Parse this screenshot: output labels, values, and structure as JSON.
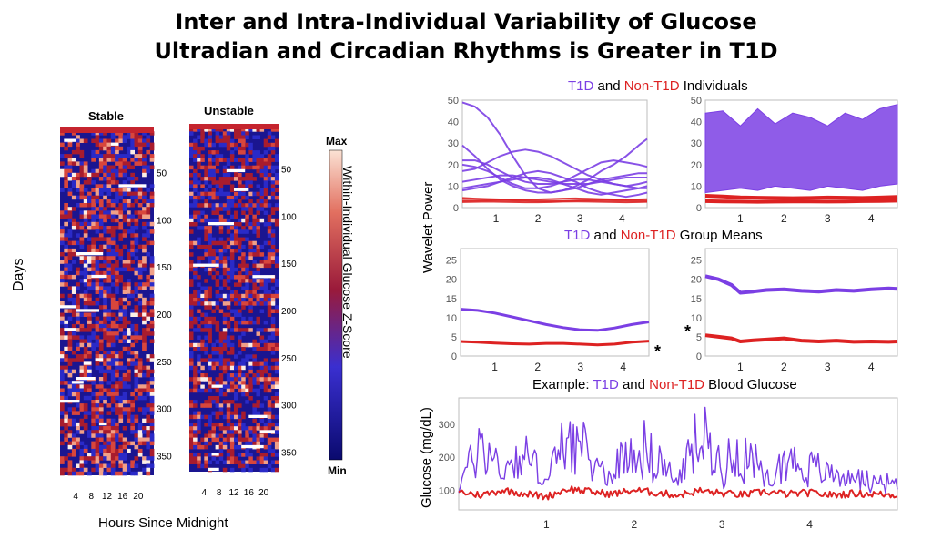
{
  "title": {
    "line1": "Inter and Intra-Individual Variability of Glucose",
    "line2": "Ultradian and Circadian Rhythms is Greater in T1D"
  },
  "heatmaps": {
    "left_title": "Stable",
    "right_title": "Unstable",
    "ylabel": "Days",
    "xlabel": "Hours Since Midnight",
    "colorbar": {
      "max_label": "Max",
      "min_label": "Min",
      "title": "Within-Individual Glucose Z-Score"
    }
  },
  "subtitles": {
    "individuals": {
      "a": "T1D",
      "b": " and ",
      "c": "Non-T1D",
      "d": " Individuals"
    },
    "means": {
      "a": "T1D",
      "b": " and ",
      "c": "Non-T1D",
      "d": " Group Means"
    },
    "example": {
      "prefix": "Example: ",
      "a": "T1D",
      "b": " and ",
      "c": "Non-T1D",
      "d": " Blood Glucose"
    }
  },
  "labels": {
    "wavelet_power": "Wavelet Power",
    "glucose": "Glucose (mg/dL)",
    "asterisk": "*"
  },
  "colors": {
    "t1d": "#7b3fe4",
    "non_t1d": "#dd2222",
    "heat_low": "#0a0a8a",
    "heat_mid": "#b01c2c",
    "heat_high": "#fbe2d4"
  },
  "chart_data": [
    {
      "type": "heatmap",
      "title": "Stable",
      "xlabel": "Hours Since Midnight",
      "ylabel": "Days",
      "x_ticks": [
        4,
        8,
        12,
        16,
        20
      ],
      "y_ticks": [
        50,
        100,
        150,
        200,
        250,
        300,
        350
      ],
      "xlim": [
        0,
        24
      ],
      "ylim": [
        1,
        370
      ]
    },
    {
      "type": "heatmap",
      "title": "Unstable",
      "xlabel": "Hours Since Midnight",
      "x_ticks": [
        4,
        8,
        12,
        16,
        20
      ],
      "y_ticks": [
        50,
        100,
        150,
        200,
        250,
        300,
        350
      ],
      "xlim": [
        0,
        24
      ],
      "ylim": [
        1,
        370
      ],
      "colorbar": {
        "min": "Min",
        "max": "Max",
        "label": "Within-Individual Glucose Z-Score"
      }
    },
    {
      "type": "line",
      "ylabel": "Wavelet Power",
      "xlim": [
        0.2,
        4.6
      ],
      "ylim": [
        0,
        50
      ],
      "x_ticks": [
        1,
        2,
        3,
        4
      ],
      "y_ticks": [
        0,
        10,
        20,
        30,
        40,
        50
      ],
      "x": [
        0.2,
        0.5,
        0.8,
        1.1,
        1.4,
        1.7,
        2.0,
        2.3,
        2.6,
        2.9,
        3.2,
        3.5,
        3.8,
        4.1,
        4.4,
        4.6
      ],
      "series": [
        {
          "group": "T1D",
          "values": [
            49,
            47,
            42,
            34,
            24,
            15,
            9,
            7,
            8,
            10,
            13,
            17,
            20,
            24,
            29,
            32
          ]
        },
        {
          "group": "T1D",
          "values": [
            29,
            24,
            18,
            13,
            10,
            8,
            7,
            7,
            8,
            9,
            11,
            13,
            14,
            15,
            16,
            16
          ]
        },
        {
          "group": "T1D",
          "values": [
            22,
            22,
            20,
            17,
            14,
            12,
            11,
            11,
            12,
            13,
            13,
            12,
            11,
            10,
            9,
            9
          ]
        },
        {
          "group": "T1D",
          "values": [
            17,
            18,
            21,
            24,
            26,
            27,
            26,
            24,
            21,
            18,
            15,
            13,
            11,
            10,
            11,
            12
          ]
        },
        {
          "group": "T1D",
          "values": [
            20,
            19,
            17,
            14,
            11,
            9,
            9,
            10,
            12,
            15,
            18,
            21,
            22,
            21,
            20,
            19
          ]
        },
        {
          "group": "T1D",
          "values": [
            12,
            13,
            14,
            15,
            15,
            14,
            13,
            12,
            11,
            11,
            11,
            12,
            13,
            14,
            14,
            14
          ]
        },
        {
          "group": "T1D",
          "values": [
            9,
            10,
            11,
            12,
            13,
            14,
            14,
            13,
            11,
            9,
            7,
            6,
            7,
            8,
            9,
            10
          ]
        },
        {
          "group": "T1D",
          "values": [
            8,
            9,
            10,
            12,
            14,
            16,
            17,
            16,
            14,
            12,
            9,
            7,
            6,
            5,
            6,
            7
          ]
        },
        {
          "group": "Non-T1D",
          "values": [
            4.5,
            4.2,
            4.0,
            3.8,
            3.7,
            3.6,
            3.8,
            4.0,
            4.2,
            4.3,
            4.1,
            3.9,
            3.8,
            3.7,
            3.8,
            3.9
          ]
        },
        {
          "group": "Non-T1D",
          "values": [
            3.2,
            3.3,
            3.4,
            3.5,
            3.4,
            3.3,
            3.1,
            3.0,
            3.1,
            3.3,
            3.4,
            3.5,
            3.4,
            3.3,
            3.2,
            3.1
          ]
        },
        {
          "group": "Non-T1D",
          "values": [
            2.6,
            2.7,
            2.8,
            2.7,
            2.6,
            2.5,
            2.5,
            2.6,
            2.8,
            2.9,
            2.8,
            2.7,
            2.6,
            2.5,
            2.6,
            2.7
          ]
        }
      ]
    },
    {
      "type": "line",
      "xlim": [
        0.2,
        4.6
      ],
      "ylim": [
        0,
        50
      ],
      "x_ticks": [
        1,
        2,
        3,
        4
      ],
      "y_ticks": [
        0,
        10,
        20,
        30,
        40,
        50
      ],
      "note": "dense band of T1D individual curves spanning roughly 8 to 48",
      "x": [
        0.2,
        0.6,
        1.0,
        1.4,
        1.8,
        2.2,
        2.6,
        3.0,
        3.4,
        3.8,
        4.2,
        4.6
      ],
      "series": [
        {
          "group": "T1D",
          "name": "band-upper",
          "values": [
            44,
            45,
            38,
            46,
            39,
            44,
            42,
            38,
            44,
            41,
            46,
            48
          ]
        },
        {
          "group": "T1D",
          "name": "band-lower",
          "values": [
            7,
            8,
            9,
            8,
            10,
            9,
            8,
            10,
            9,
            8,
            10,
            11
          ]
        },
        {
          "group": "Non-T1D",
          "values": [
            5.5,
            5.2,
            4.8,
            4.6,
            4.5,
            4.4,
            4.5,
            4.7,
            4.6,
            4.5,
            4.7,
            5.0
          ]
        },
        {
          "group": "Non-T1D",
          "values": [
            3.0,
            2.9,
            2.8,
            2.7,
            2.8,
            2.9,
            2.9,
            2.8,
            2.9,
            3.0,
            3.1,
            3.2
          ]
        }
      ]
    },
    {
      "type": "line",
      "xlim": [
        0.2,
        4.6
      ],
      "ylim": [
        0,
        28
      ],
      "x_ticks": [
        1,
        2,
        3,
        4
      ],
      "y_ticks": [
        0,
        5,
        10,
        15,
        20,
        25
      ],
      "x": [
        0.2,
        0.6,
        1.0,
        1.4,
        1.8,
        2.2,
        2.6,
        3.0,
        3.4,
        3.8,
        4.2,
        4.6
      ],
      "series": [
        {
          "group": "T1D",
          "values": [
            12.2,
            11.9,
            11.2,
            10.2,
            9.2,
            8.2,
            7.4,
            6.8,
            6.7,
            7.3,
            8.2,
            8.9
          ]
        },
        {
          "group": "Non-T1D",
          "values": [
            3.8,
            3.6,
            3.4,
            3.2,
            3.1,
            3.3,
            3.3,
            3.1,
            2.9,
            3.1,
            3.6,
            3.9
          ]
        }
      ]
    },
    {
      "type": "line",
      "xlim": [
        0.2,
        4.6
      ],
      "ylim": [
        0,
        28
      ],
      "x_ticks": [
        1,
        2,
        3,
        4
      ],
      "y_ticks": [
        0,
        5,
        10,
        15,
        20,
        25
      ],
      "x": [
        0.2,
        0.5,
        0.8,
        1.0,
        1.3,
        1.6,
        2.0,
        2.4,
        2.8,
        3.2,
        3.6,
        4.0,
        4.4,
        4.6
      ],
      "series": [
        {
          "group": "T1D",
          "values": [
            20.8,
            20.0,
            18.5,
            16.5,
            16.8,
            17.2,
            17.4,
            17.0,
            16.8,
            17.2,
            17.0,
            17.4,
            17.6,
            17.5
          ]
        },
        {
          "group": "Non-T1D",
          "values": [
            5.4,
            5.0,
            4.6,
            3.8,
            4.1,
            4.3,
            4.6,
            4.0,
            3.8,
            4.0,
            3.7,
            3.8,
            3.7,
            3.8
          ]
        }
      ]
    },
    {
      "type": "line",
      "ylabel": "Glucose (mg/dL)",
      "xlim": [
        0,
        5
      ],
      "ylim": [
        40,
        380
      ],
      "x_ticks": [
        1,
        2,
        3,
        4
      ],
      "y_ticks": [
        100,
        200,
        300
      ],
      "x": [
        0.0,
        0.25,
        0.5,
        0.75,
        1.0,
        1.25,
        1.5,
        1.75,
        2.0,
        2.25,
        2.5,
        2.75,
        3.0,
        3.25,
        3.5,
        3.75,
        4.0,
        4.25,
        4.5,
        4.75,
        5.0
      ],
      "series": [
        {
          "group": "T1D",
          "values": [
            110,
            300,
            180,
            250,
            140,
            330,
            210,
            160,
            300,
            220,
            140,
            320,
            200,
            260,
            150,
            230,
            190,
            170,
            150,
            140,
            120
          ]
        },
        {
          "group": "Non-T1D",
          "values": [
            95,
            85,
            100,
            90,
            80,
            105,
            95,
            88,
            100,
            92,
            85,
            98,
            90,
            86,
            95,
            88,
            92,
            85,
            90,
            88,
            85
          ]
        }
      ]
    }
  ]
}
